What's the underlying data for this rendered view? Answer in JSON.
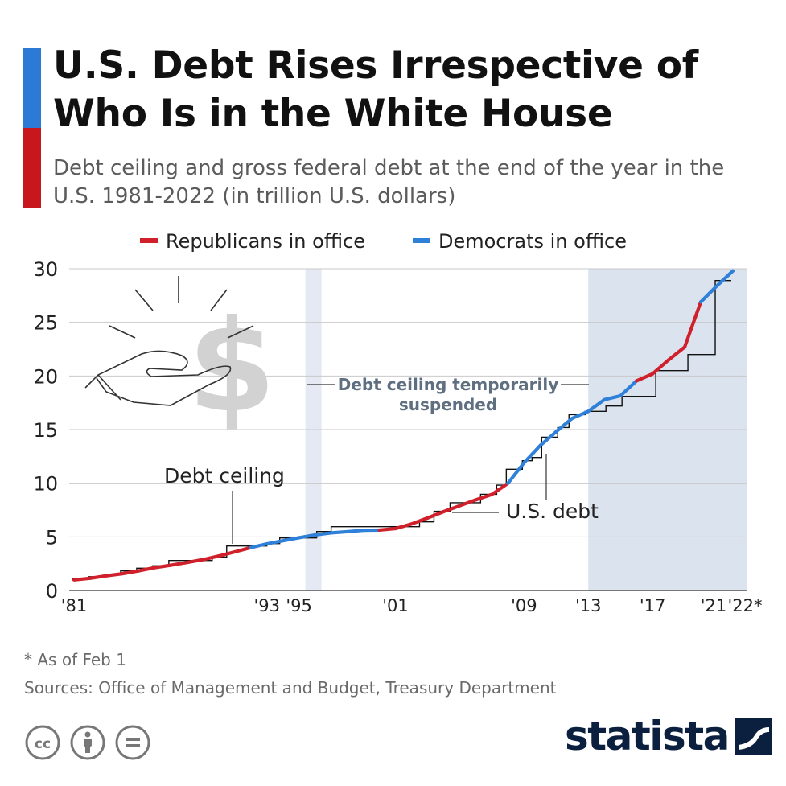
{
  "header": {
    "title": "U.S. Debt Rises Irrespective of Who Is in the White House",
    "subtitle": "Debt ceiling and gross federal debt at the end of the year in the U.S. 1981-2022 (in trillion U.S. dollars)"
  },
  "colors": {
    "republican": "#d0202b",
    "democrat": "#2f80d8",
    "shade_light": "#e4e9f3",
    "shade": "#dbe3ef",
    "ceiling_line": "#111111",
    "accent_blue": "#2b7bd6",
    "accent_red": "#c8161d",
    "brand": "#0b1f3e"
  },
  "chart_data": {
    "type": "line",
    "title": "U.S. Debt Rises Irrespective of Who Is in the White House",
    "ylabel": "trillion U.S. dollars",
    "ylim": [
      0,
      30
    ],
    "yticks": [
      0,
      5,
      10,
      15,
      20,
      25,
      30
    ],
    "xlim": [
      1981,
      2022
    ],
    "xticks": [
      {
        "year": 1981,
        "label": "'81"
      },
      {
        "year": 1993,
        "label": "'93"
      },
      {
        "year": 1995,
        "label": "'95"
      },
      {
        "year": 2001,
        "label": "'01"
      },
      {
        "year": 2009,
        "label": "'09"
      },
      {
        "year": 2013,
        "label": "'13"
      },
      {
        "year": 2017,
        "label": "'17"
      },
      {
        "year": 2021,
        "label": "'21"
      },
      {
        "year": 2022,
        "label": "'22*"
      }
    ],
    "legend": [
      {
        "label": "Republicans in office",
        "party": "republican"
      },
      {
        "label": "Democrats in office",
        "party": "democrat"
      }
    ],
    "suspension_periods": [
      {
        "from": 1995.4,
        "to": 1996.4
      },
      {
        "from": 2013.0,
        "to": 2022.0
      }
    ],
    "annotations": {
      "suspended": [
        "Debt ceiling temporarily",
        "suspended"
      ],
      "ceiling": "Debt ceiling",
      "debt": "U.S. debt"
    },
    "series": [
      {
        "name": "U.S. debt",
        "x": [
          1981,
          1982,
          1983,
          1984,
          1985,
          1986,
          1987,
          1988,
          1989,
          1990,
          1991,
          1992,
          1993,
          1994,
          1995,
          1996,
          1997,
          1998,
          1999,
          2000,
          2001,
          2002,
          2003,
          2004,
          2005,
          2006,
          2007,
          2008,
          2009,
          2010,
          2011,
          2012,
          2013,
          2014,
          2015,
          2016,
          2017,
          2018,
          2019,
          2020,
          2021,
          2022
        ],
        "values": [
          0.99,
          1.14,
          1.37,
          1.56,
          1.82,
          2.12,
          2.35,
          2.6,
          2.87,
          3.21,
          3.6,
          4.0,
          4.35,
          4.64,
          4.92,
          5.18,
          5.37,
          5.48,
          5.61,
          5.63,
          5.77,
          6.2,
          6.76,
          7.35,
          7.9,
          8.45,
          8.95,
          9.99,
          11.9,
          13.5,
          14.8,
          16.05,
          16.7,
          17.79,
          18.15,
          19.54,
          20.2,
          21.5,
          22.7,
          26.9,
          28.4,
          29.8
        ],
        "party": [
          "republican",
          "republican",
          "republican",
          "republican",
          "republican",
          "republican",
          "republican",
          "republican",
          "republican",
          "republican",
          "republican",
          "republican",
          "democrat",
          "democrat",
          "democrat",
          "democrat",
          "democrat",
          "democrat",
          "democrat",
          "democrat",
          "republican",
          "republican",
          "republican",
          "republican",
          "republican",
          "republican",
          "republican",
          "republican",
          "democrat",
          "democrat",
          "democrat",
          "democrat",
          "democrat",
          "democrat",
          "democrat",
          "democrat",
          "republican",
          "republican",
          "republican",
          "republican",
          "democrat",
          "democrat"
        ]
      },
      {
        "name": "Debt ceiling",
        "steps": [
          {
            "from": 1980.9,
            "to": 1981.9,
            "value": 1.08
          },
          {
            "from": 1981.9,
            "to": 1982.9,
            "value": 1.29
          },
          {
            "from": 1982.9,
            "to": 1983.9,
            "value": 1.49
          },
          {
            "from": 1983.9,
            "to": 1984.9,
            "value": 1.82
          },
          {
            "from": 1984.9,
            "to": 1985.9,
            "value": 2.08
          },
          {
            "from": 1985.9,
            "to": 1986.9,
            "value": 2.3
          },
          {
            "from": 1986.9,
            "to": 1987.9,
            "value": 2.8
          },
          {
            "from": 1987.9,
            "to": 1989.6,
            "value": 2.8
          },
          {
            "from": 1989.6,
            "to": 1990.5,
            "value": 3.12
          },
          {
            "from": 1990.5,
            "to": 1993.0,
            "value": 4.15
          },
          {
            "from": 1993.0,
            "to": 1993.8,
            "value": 4.37
          },
          {
            "from": 1993.8,
            "to": 1996.1,
            "value": 4.9
          },
          {
            "from": 1996.1,
            "to": 1997.0,
            "value": 5.5
          },
          {
            "from": 1997.0,
            "to": 2002.5,
            "value": 5.95
          },
          {
            "from": 2002.5,
            "to": 2003.4,
            "value": 6.4
          },
          {
            "from": 2003.4,
            "to": 2004.4,
            "value": 7.38
          },
          {
            "from": 2004.4,
            "to": 2006.3,
            "value": 8.18
          },
          {
            "from": 2006.3,
            "to": 2007.3,
            "value": 8.97
          },
          {
            "from": 2007.3,
            "to": 2007.9,
            "value": 9.82
          },
          {
            "from": 2007.9,
            "to": 2008.9,
            "value": 11.3
          },
          {
            "from": 2008.9,
            "to": 2009.5,
            "value": 12.1
          },
          {
            "from": 2009.5,
            "to": 2010.1,
            "value": 12.4
          },
          {
            "from": 2010.1,
            "to": 2011.1,
            "value": 14.29
          },
          {
            "from": 2011.1,
            "to": 2011.8,
            "value": 15.19
          },
          {
            "from": 2011.8,
            "to": 2012.8,
            "value": 16.39
          },
          {
            "from": 2012.8,
            "to": 2014.1,
            "value": 16.7
          },
          {
            "from": 2014.1,
            "to": 2015.1,
            "value": 17.2
          },
          {
            "from": 2015.1,
            "to": 2017.2,
            "value": 18.1
          },
          {
            "from": 2017.2,
            "to": 2019.2,
            "value": 20.5
          },
          {
            "from": 2019.2,
            "to": 2020.9,
            "value": 22.0
          },
          {
            "from": 2020.9,
            "to": 2021.9,
            "value": 28.9
          }
        ]
      }
    ]
  },
  "footer": {
    "note": "* As of Feb 1",
    "sources": "Sources: Office of Management and Budget, Treasury Department",
    "brand": "statista"
  }
}
